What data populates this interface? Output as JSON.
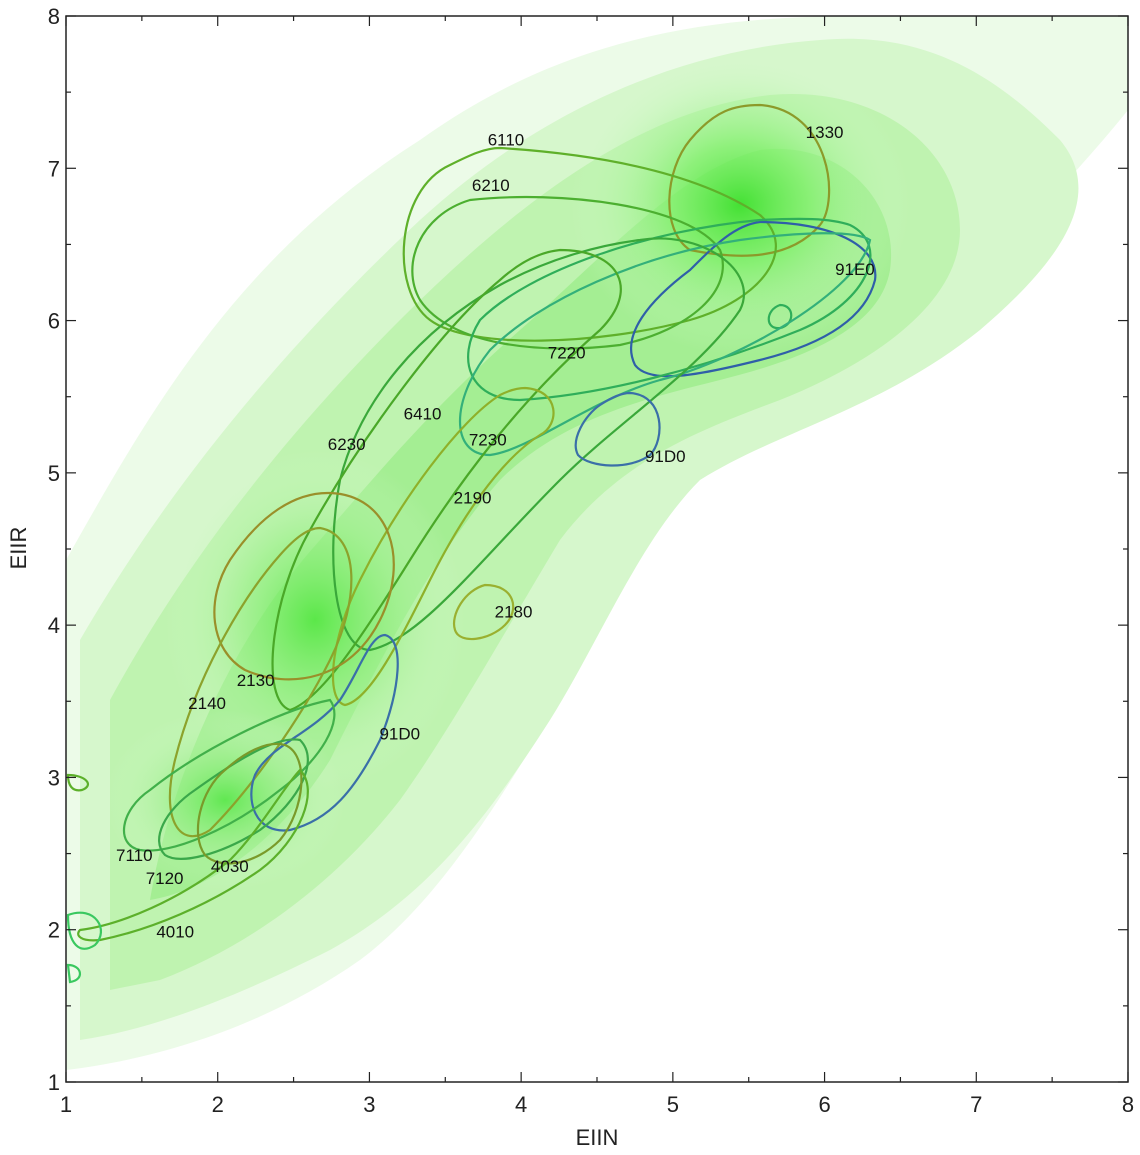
{
  "chart_data": {
    "type": "contour",
    "xlabel": "EIIN",
    "ylabel": "EIIR",
    "xlim": [
      1,
      8
    ],
    "ylim": [
      1,
      8
    ],
    "xticks": [
      "1",
      "2",
      "3",
      "4",
      "5",
      "6",
      "7",
      "8"
    ],
    "yticks": [
      "1",
      "2",
      "3",
      "4",
      "5",
      "6",
      "7",
      "8"
    ],
    "grid": false,
    "background_density": {
      "colormap": "white-to-green",
      "peaks": [
        {
          "x": 5.5,
          "y": 6.8
        },
        {
          "x": 2.7,
          "y": 4.0
        },
        {
          "x": 1.9,
          "y": 2.8
        }
      ]
    },
    "contours": [
      {
        "label": "1330",
        "color": "#8c9a2a",
        "label_x": 6.0,
        "label_y": 7.2
      },
      {
        "label": "6110",
        "color": "#5fb02a",
        "label_x": 3.9,
        "label_y": 7.15
      },
      {
        "label": "6210",
        "color": "#4caf30",
        "label_x": 3.8,
        "label_y": 6.85
      },
      {
        "label": "91E0",
        "color": "#2f5fa8",
        "label_x": 6.2,
        "label_y": 6.3
      },
      {
        "label": "7220",
        "color": "#2fae5a",
        "label_x": 4.3,
        "label_y": 5.75
      },
      {
        "label": "6410",
        "color": "#3aa83a",
        "label_x": 3.35,
        "label_y": 5.35
      },
      {
        "label": "7230",
        "color": "#33b07a",
        "label_x": 3.78,
        "label_y": 5.18
      },
      {
        "label": "6230",
        "color": "#4aa828",
        "label_x": 2.85,
        "label_y": 5.15
      },
      {
        "label": "91D0",
        "color": "#3a6fa8",
        "label_x": 4.95,
        "label_y": 5.07
      },
      {
        "label": "2190",
        "color": "#8fb02a",
        "label_x": 3.68,
        "label_y": 4.8
      },
      {
        "label": "2180",
        "color": "#9ab030",
        "label_x": 3.95,
        "label_y": 4.05
      },
      {
        "label": "2130",
        "color": "#9a8f2a",
        "label_x": 2.25,
        "label_y": 3.6
      },
      {
        "label": "2140",
        "color": "#8ca22c",
        "label_x": 1.93,
        "label_y": 3.45
      },
      {
        "label": "91D0",
        "color": "#3a6fa8",
        "label_x": 3.2,
        "label_y": 3.25
      },
      {
        "label": "7110",
        "color": "#41b04a",
        "label_x": 1.45,
        "label_y": 2.45
      },
      {
        "label": "7120",
        "color": "#3aa84a",
        "label_x": 1.65,
        "label_y": 2.3
      },
      {
        "label": "4030",
        "color": "#7a9a2a",
        "label_x": 2.08,
        "label_y": 2.38
      },
      {
        "label": "4010",
        "color": "#5cb02a",
        "label_x": 1.72,
        "label_y": 1.95
      }
    ]
  }
}
